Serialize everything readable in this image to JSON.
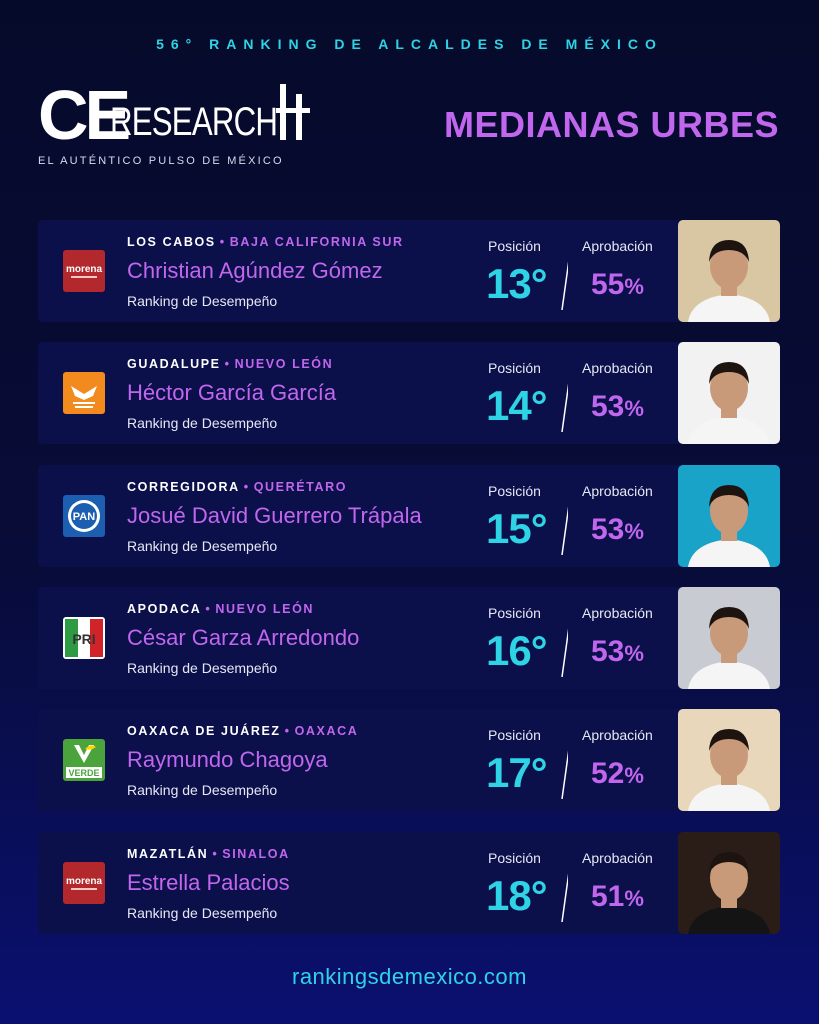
{
  "header": {
    "top_line": "56° RANKING DE ALCALDES DE MÉXICO",
    "logo_ce": "CE",
    "logo_research": "RESEARCH",
    "tagline": "EL AUTÉNTICO PULSO DE MÉXICO",
    "section_title": "MEDIANAS URBES"
  },
  "colors": {
    "accent_cyan": "#2fd3e6",
    "accent_purple": "#c067ee",
    "card_bg": "#0b0f4a"
  },
  "labels": {
    "position": "Posición",
    "approval": "Aprobación",
    "ranking": "Ranking de Desempeño"
  },
  "cards": [
    {
      "city": "LOS CABOS",
      "state": "BAJA CALIFORNIA SUR",
      "name": "Christian Agúndez Gómez",
      "position": "13°",
      "approval": "55",
      "pct": "%",
      "party": "morena",
      "party_icon": "morena-logo",
      "photo_bg": "#d9c7a4"
    },
    {
      "city": "GUADALUPE",
      "state": "NUEVO LEÓN",
      "name": "Héctor García García",
      "position": "14°",
      "approval": "53",
      "pct": "%",
      "party": "movimiento-ciudadano",
      "party_icon": "movimiento-ciudadano-logo",
      "photo_bg": "#f2f2f2"
    },
    {
      "city": "CORREGIDORA",
      "state": "QUERÉTARO",
      "name": "Josué David Guerrero Trápala",
      "position": "15°",
      "approval": "53",
      "pct": "%",
      "party": "pan",
      "party_icon": "pan-logo",
      "photo_bg": "#1aa3c9"
    },
    {
      "city": "APODACA",
      "state": "NUEVO LEÓN",
      "name": "César Garza Arredondo",
      "position": "16°",
      "approval": "53",
      "pct": "%",
      "party": "pri",
      "party_icon": "pri-logo",
      "photo_bg": "#c8ccd2"
    },
    {
      "city": "OAXACA DE JUÁREZ",
      "state": "OAXACA",
      "name": "Raymundo Chagoya",
      "position": "17°",
      "approval": "52",
      "pct": "%",
      "party": "verde",
      "party_icon": "verde-logo",
      "photo_bg": "#e8d7bb"
    },
    {
      "city": "MAZATLÁN",
      "state": "SINALOA",
      "name": "Estrella Palacios",
      "position": "18°",
      "approval": "51",
      "pct": "%",
      "party": "morena",
      "party_icon": "morena-logo",
      "photo_bg": "#2a1d18"
    }
  ],
  "footer": {
    "url": "rankingsdemexico.com"
  }
}
